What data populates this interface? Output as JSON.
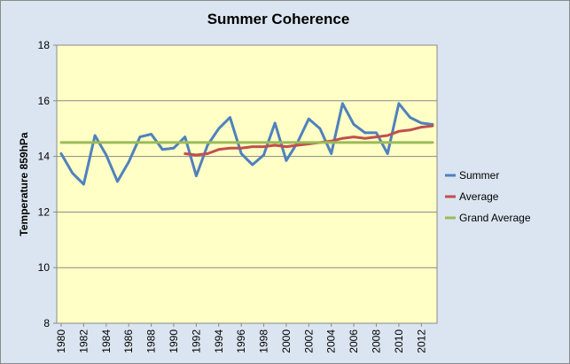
{
  "chart_data": {
    "type": "line",
    "title": "Summer Coherence",
    "xlabel": "",
    "ylabel": "Temperature 859hPa",
    "ylim": [
      8,
      18
    ],
    "yticks": [
      8,
      10,
      12,
      14,
      16,
      18
    ],
    "xlim": [
      1980,
      2013
    ],
    "xticks": [
      1980,
      1982,
      1984,
      1986,
      1988,
      1990,
      1992,
      1994,
      1996,
      1998,
      2000,
      2002,
      2004,
      2006,
      2008,
      2010,
      2012
    ],
    "grid": "horizontal",
    "legend_position": "right",
    "series": [
      {
        "name": "Summer",
        "color": "#4f81bd",
        "x": [
          1980,
          1981,
          1982,
          1983,
          1984,
          1985,
          1986,
          1987,
          1988,
          1989,
          1990,
          1991,
          1992,
          1993,
          1994,
          1995,
          1996,
          1997,
          1998,
          1999,
          2000,
          2001,
          2002,
          2003,
          2004,
          2005,
          2006,
          2007,
          2008,
          2009,
          2010,
          2011,
          2012,
          2013
        ],
        "y": [
          14.1,
          13.4,
          13.0,
          14.75,
          14.05,
          13.1,
          13.8,
          14.7,
          14.8,
          14.25,
          14.3,
          14.7,
          13.3,
          14.4,
          15.0,
          15.4,
          14.1,
          13.7,
          14.05,
          15.2,
          13.85,
          14.5,
          15.35,
          15.0,
          14.1,
          15.9,
          15.15,
          14.85,
          14.85,
          14.1,
          15.9,
          15.4,
          15.2,
          15.15
        ]
      },
      {
        "name": "Average",
        "color": "#c0504d",
        "x": [
          1991,
          1992,
          1993,
          1994,
          1995,
          1996,
          1997,
          1998,
          1999,
          2000,
          2001,
          2002,
          2003,
          2004,
          2005,
          2006,
          2007,
          2008,
          2009,
          2010,
          2011,
          2012,
          2013
        ],
        "y": [
          14.1,
          14.05,
          14.1,
          14.25,
          14.3,
          14.3,
          14.35,
          14.35,
          14.4,
          14.35,
          14.4,
          14.45,
          14.5,
          14.55,
          14.65,
          14.7,
          14.65,
          14.7,
          14.75,
          14.9,
          14.95,
          15.05,
          15.1
        ]
      },
      {
        "name": "Grand Average",
        "color": "#9bbb59",
        "x": [
          1980,
          2013
        ],
        "y": [
          14.5,
          14.5
        ]
      }
    ]
  }
}
